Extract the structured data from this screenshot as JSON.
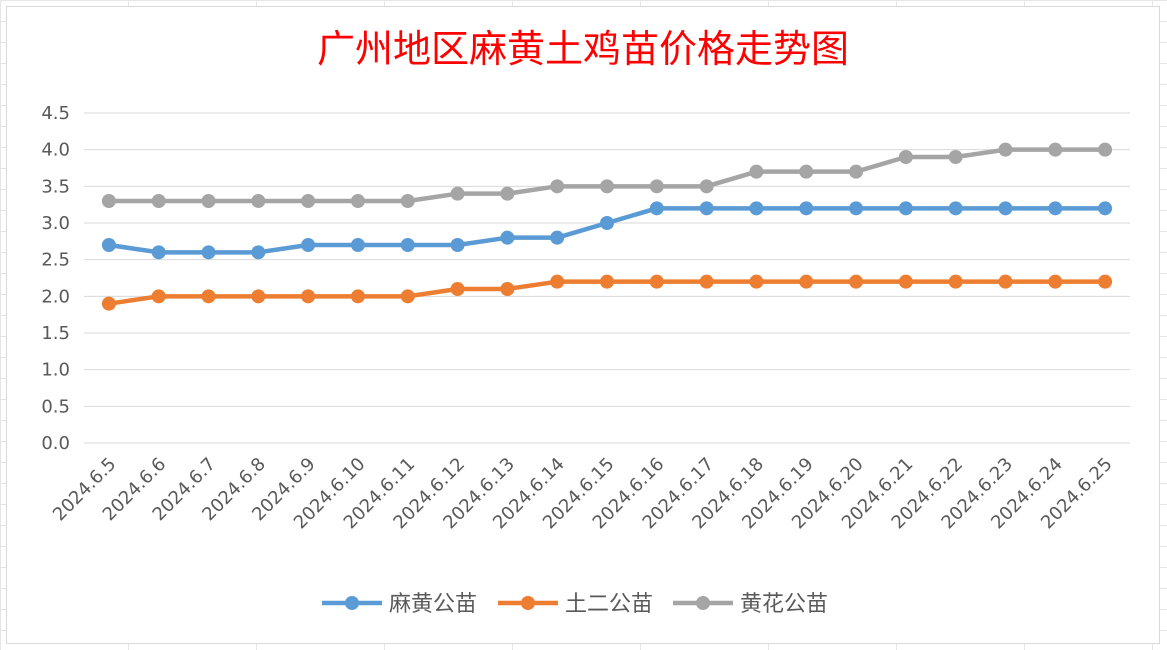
{
  "chart_data": {
    "type": "line",
    "title": "广州地区麻黄土鸡苗价格走势图",
    "xlabel": "",
    "ylabel": "",
    "ylim": [
      0,
      4.5
    ],
    "yticks": [
      "0.0",
      "0.5",
      "1.0",
      "1.5",
      "2.0",
      "2.5",
      "3.0",
      "3.5",
      "4.0",
      "4.5"
    ],
    "grid": true,
    "legend_position": "bottom",
    "categories": [
      "2024.6.5",
      "2024.6.6",
      "2024.6.7",
      "2024.6.8",
      "2024.6.9",
      "2024.6.10",
      "2024.6.11",
      "2024.6.12",
      "2024.6.13",
      "2024.6.14",
      "2024.6.15",
      "2024.6.16",
      "2024.6.17",
      "2024.6.18",
      "2024.6.19",
      "2024.6.20",
      "2024.6.21",
      "2024.6.22",
      "2024.6.23",
      "2024.6.24",
      "2024.6.25"
    ],
    "series": [
      {
        "name": "麻黄公苗",
        "color": "#5b9bd5",
        "values": [
          2.7,
          2.6,
          2.6,
          2.6,
          2.7,
          2.7,
          2.7,
          2.7,
          2.8,
          2.8,
          3.0,
          3.2,
          3.2,
          3.2,
          3.2,
          3.2,
          3.2,
          3.2,
          3.2,
          3.2,
          3.2
        ]
      },
      {
        "name": "土二公苗",
        "color": "#ed7d31",
        "values": [
          1.9,
          2.0,
          2.0,
          2.0,
          2.0,
          2.0,
          2.0,
          2.1,
          2.1,
          2.2,
          2.2,
          2.2,
          2.2,
          2.2,
          2.2,
          2.2,
          2.2,
          2.2,
          2.2,
          2.2,
          2.2
        ]
      },
      {
        "name": "黄花公苗",
        "color": "#a5a5a5",
        "values": [
          3.3,
          3.3,
          3.3,
          3.3,
          3.3,
          3.3,
          3.3,
          3.4,
          3.4,
          3.5,
          3.5,
          3.5,
          3.5,
          3.7,
          3.7,
          3.7,
          3.9,
          3.9,
          4.0,
          4.0,
          4.0
        ]
      }
    ]
  }
}
